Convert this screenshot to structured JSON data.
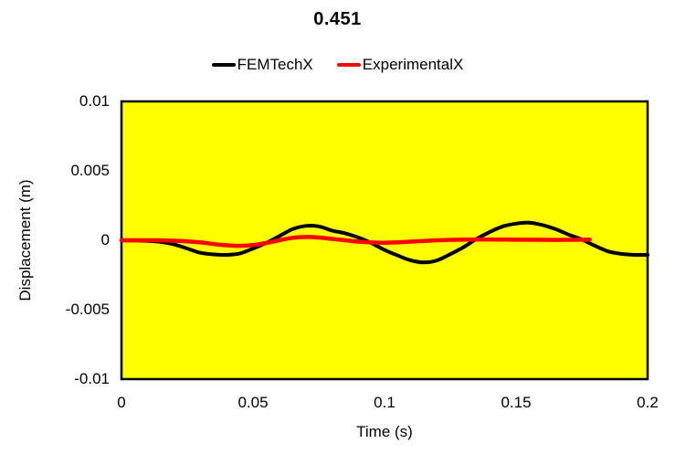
{
  "title": "0.451",
  "legend": {
    "position": "top",
    "items": [
      {
        "label": "FEMTechX",
        "color": "#000000"
      },
      {
        "label": "ExperimentalX",
        "color": "#ff0000"
      }
    ]
  },
  "axes": {
    "x_title": "Time (s)",
    "y_title": "Displacement (m)",
    "x_tick_labels": [
      "0",
      "0.05",
      "0.1",
      "0.15",
      "0.2"
    ],
    "y_tick_labels": [
      "0.01",
      "0.005",
      "0",
      "-0.005",
      "-0.01"
    ]
  },
  "chart_data": {
    "type": "line",
    "title": "0.451",
    "xlabel": "Time (s)",
    "ylabel": "Displacement (m)",
    "xlim": [
      0,
      0.2
    ],
    "ylim": [
      -0.01,
      0.01
    ],
    "xticks": [
      0,
      0.05,
      0.1,
      0.15,
      0.2
    ],
    "yticks": [
      0.01,
      0.005,
      0,
      -0.005,
      -0.01
    ],
    "grid": false,
    "plot_bg": "#ffff00",
    "plot_border_color": "#000000",
    "legend_position": "top-center",
    "series": [
      {
        "name": "FEMTechX",
        "color": "#000000",
        "width": 4,
        "points": [
          [
            0,
            0
          ],
          [
            0.005,
            -2e-05
          ],
          [
            0.01,
            -5e-05
          ],
          [
            0.015,
            -0.00012
          ],
          [
            0.02,
            -0.0003
          ],
          [
            0.025,
            -0.0006
          ],
          [
            0.03,
            -0.0009
          ],
          [
            0.035,
            -0.00102
          ],
          [
            0.04,
            -0.00105
          ],
          [
            0.045,
            -0.00095
          ],
          [
            0.05,
            -0.0006
          ],
          [
            0.055,
            -0.0002
          ],
          [
            0.06,
            0.0003
          ],
          [
            0.065,
            0.0008
          ],
          [
            0.07,
            0.00103
          ],
          [
            0.075,
            0.001
          ],
          [
            0.08,
            0.0007
          ],
          [
            0.085,
            0.0005
          ],
          [
            0.09,
            0.0002
          ],
          [
            0.095,
            -0.0002
          ],
          [
            0.1,
            -0.0007
          ],
          [
            0.105,
            -0.0011
          ],
          [
            0.11,
            -0.00145
          ],
          [
            0.115,
            -0.0016
          ],
          [
            0.12,
            -0.00145
          ],
          [
            0.125,
            -0.001
          ],
          [
            0.13,
            -0.0005
          ],
          [
            0.135,
            0.0001
          ],
          [
            0.14,
            0.0006
          ],
          [
            0.145,
            0.001
          ],
          [
            0.15,
            0.0012
          ],
          [
            0.155,
            0.00127
          ],
          [
            0.16,
            0.0011
          ],
          [
            0.165,
            0.0008
          ],
          [
            0.17,
            0.0004
          ],
          [
            0.175,
            5e-05
          ],
          [
            0.18,
            -0.0004
          ],
          [
            0.185,
            -0.0008
          ],
          [
            0.19,
            -0.00098
          ],
          [
            0.195,
            -0.00105
          ],
          [
            0.2,
            -0.00105
          ]
        ]
      },
      {
        "name": "ExperimentalX",
        "color": "#ff0000",
        "width": 4.5,
        "points": [
          [
            0,
            0
          ],
          [
            0.005,
            0
          ],
          [
            0.01,
            0
          ],
          [
            0.015,
            0
          ],
          [
            0.02,
            -3e-05
          ],
          [
            0.025,
            -8e-05
          ],
          [
            0.03,
            -0.00015
          ],
          [
            0.035,
            -0.00027
          ],
          [
            0.04,
            -0.00036
          ],
          [
            0.045,
            -0.0004
          ],
          [
            0.05,
            -0.00035
          ],
          [
            0.055,
            -0.0002
          ],
          [
            0.06,
            0
          ],
          [
            0.065,
            0.00018
          ],
          [
            0.07,
            0.00024
          ],
          [
            0.075,
            0.0002
          ],
          [
            0.08,
            0.0001
          ],
          [
            0.085,
            0
          ],
          [
            0.09,
            -0.0001
          ],
          [
            0.095,
            -0.00016
          ],
          [
            0.1,
            -0.00018
          ],
          [
            0.105,
            -0.00015
          ],
          [
            0.11,
            -0.0001
          ],
          [
            0.115,
            -5e-05
          ],
          [
            0.12,
            0
          ],
          [
            0.13,
            5e-05
          ],
          [
            0.14,
            6e-05
          ],
          [
            0.15,
            4e-05
          ],
          [
            0.16,
            3e-05
          ],
          [
            0.17,
            3e-05
          ],
          [
            0.178,
            5e-05
          ]
        ]
      }
    ]
  }
}
